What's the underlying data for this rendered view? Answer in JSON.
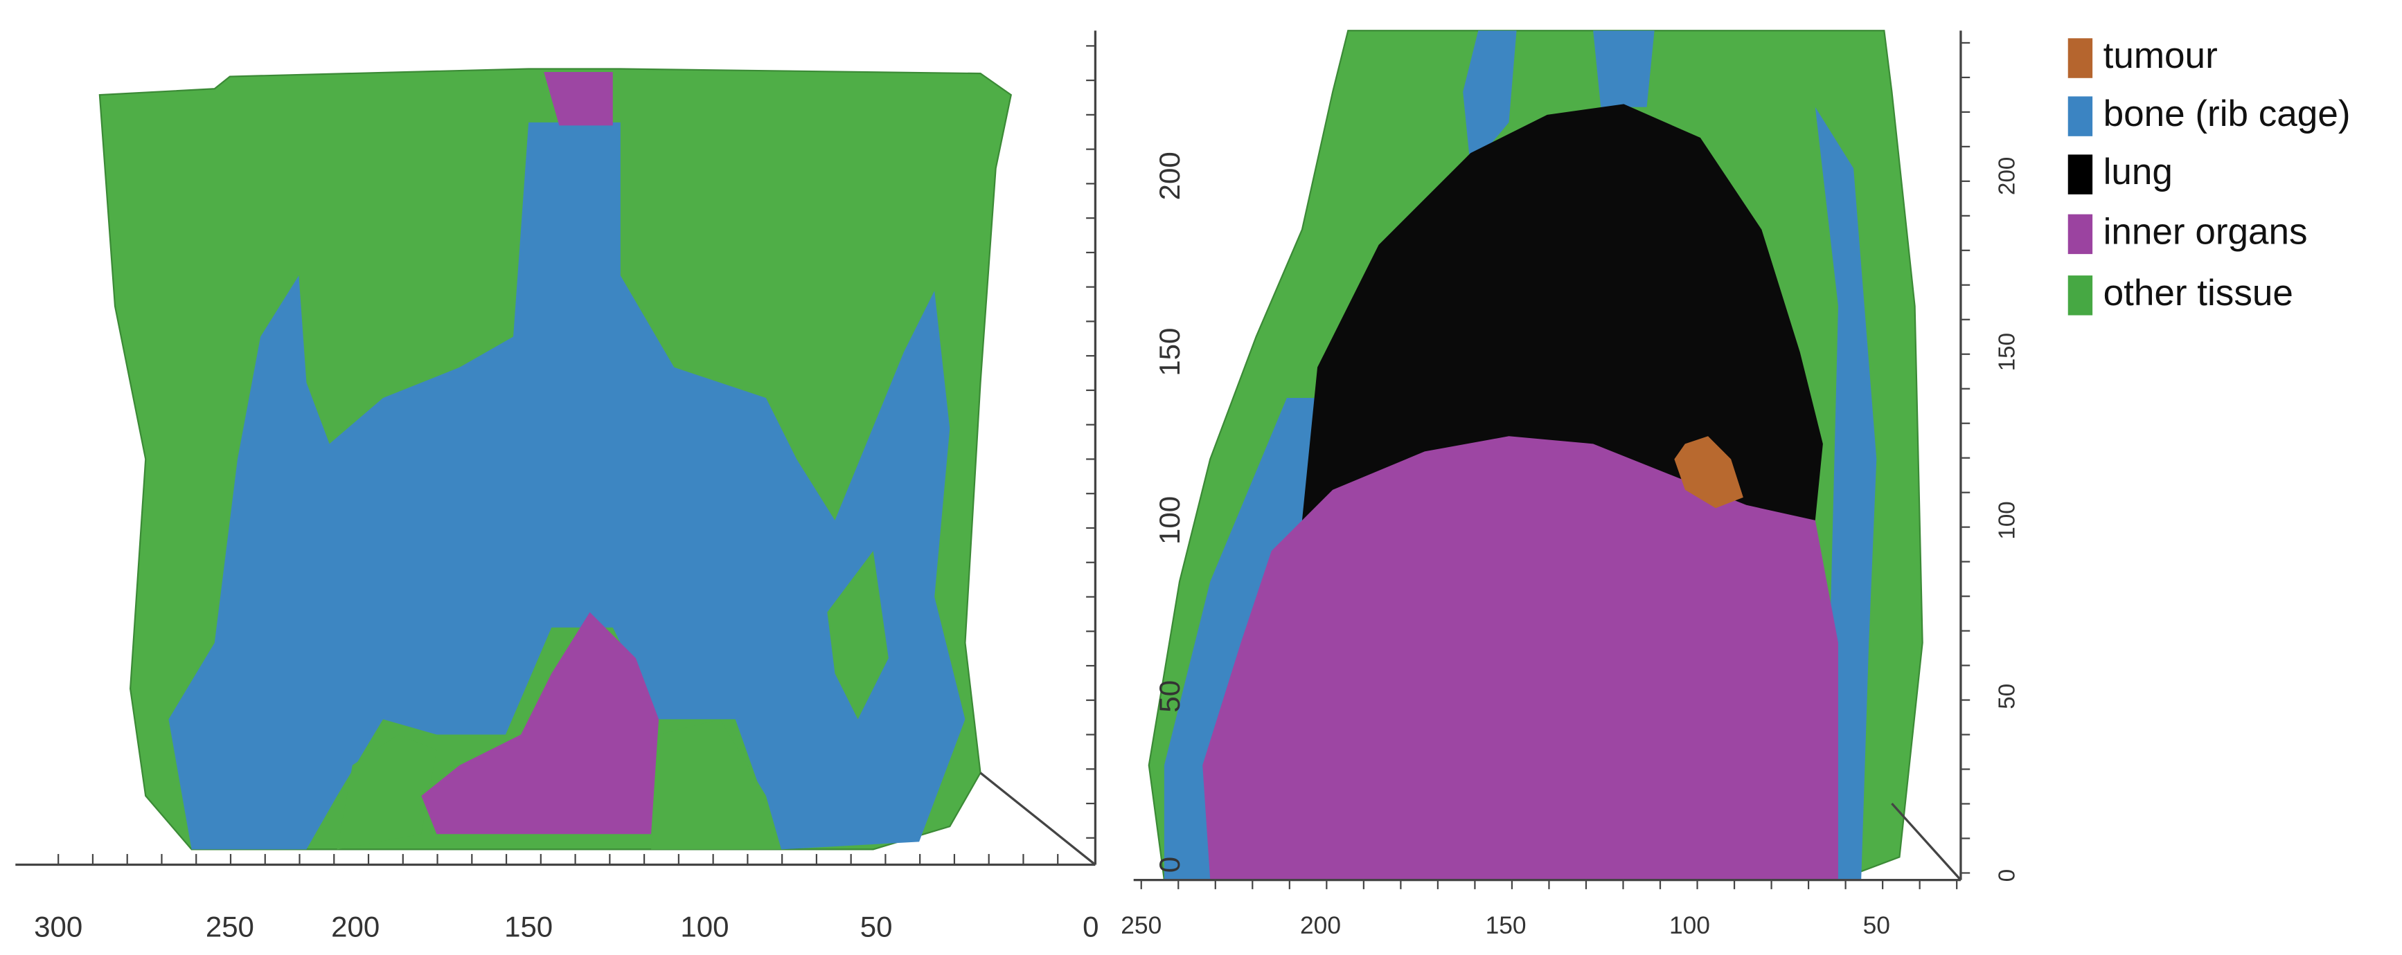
{
  "left_view": {
    "x_tick_labels": [
      "300",
      "250",
      "200",
      "150",
      "100",
      "50",
      "0"
    ]
  },
  "right_view": {
    "left_tick_labels": [
      "200",
      "150",
      "100",
      "50",
      "0"
    ],
    "bottom_tick_labels": [
      "250",
      "200",
      "150",
      "100",
      "50"
    ],
    "right_tick_labels": [
      "200",
      "150",
      "100",
      "50",
      "0"
    ]
  },
  "legend": [
    {
      "label": "tumour",
      "color": "#b5652e"
    },
    {
      "label": "bone (rib cage)",
      "color": "#3b84c2"
    },
    {
      "label": "lung",
      "color": "#000000"
    },
    {
      "label": "inner organs",
      "color": "#9b43a0"
    },
    {
      "label": "other tissue",
      "color": "#46a843"
    }
  ]
}
